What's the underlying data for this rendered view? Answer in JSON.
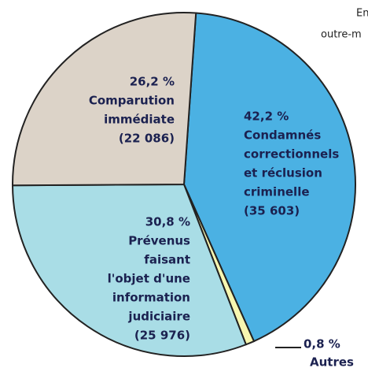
{
  "chart_data": {
    "type": "pie",
    "categories": [
      [
        "Condamnés",
        "correctionnels",
        "et réclusion",
        "criminelle"
      ],
      [
        "Autres"
      ],
      [
        "Prévenus",
        "faisant",
        "l'objet d'une",
        "information",
        "judiciaire"
      ],
      [
        "Comparution",
        "immédiate"
      ]
    ],
    "values": [
      42.2,
      0.8,
      30.8,
      26.2
    ],
    "value_labels": [
      "42,2 %",
      "0,8 %",
      "30,8 %",
      "26,2 %"
    ],
    "counts": [
      35603,
      null,
      25976,
      22086
    ],
    "count_labels": [
      "(35 603)",
      null,
      "(25 976)",
      "(22 086)"
    ],
    "colors": [
      "#4bb1e3",
      "#f7f6b0",
      "#a9dde6",
      "#dcd3c8"
    ],
    "annotations": [
      "En",
      "outre-m"
    ]
  }
}
